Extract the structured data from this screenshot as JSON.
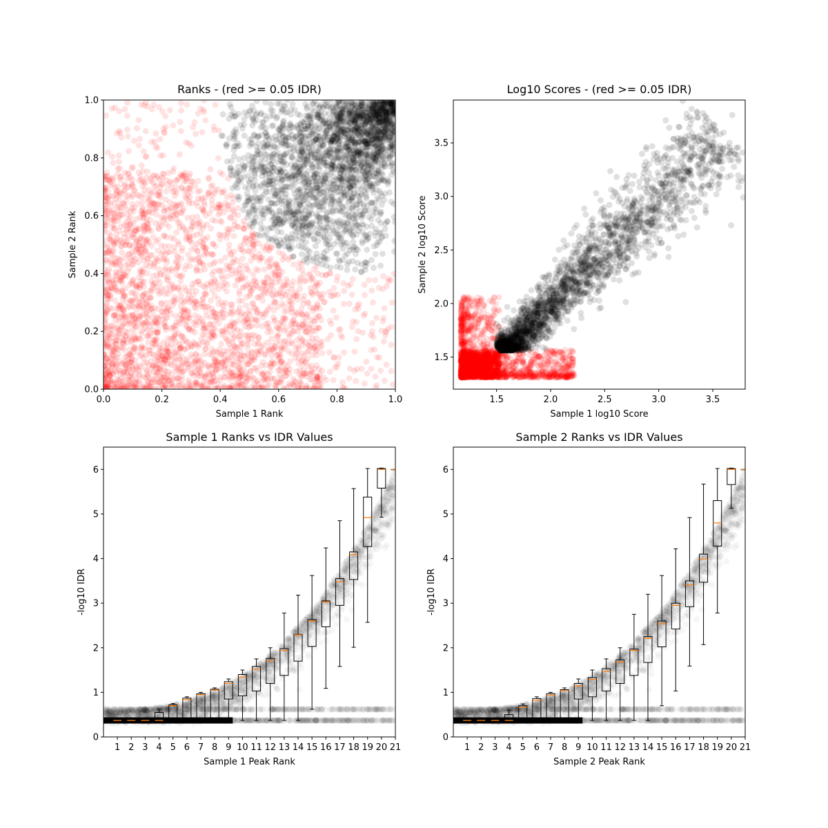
{
  "chart_data": [
    {
      "type": "scatter",
      "title": "Ranks - (red >= 0.05 IDR)",
      "xlabel": "Sample 1 Rank",
      "ylabel": "Sample 2 Rank",
      "xlim": [
        0,
        1
      ],
      "ylim": [
        0,
        1
      ],
      "xticks": [
        "0.0",
        "0.2",
        "0.4",
        "0.6",
        "0.8",
        "1.0"
      ],
      "yticks": [
        "0.0",
        "0.2",
        "0.4",
        "0.6",
        "0.8",
        "1.0"
      ],
      "series": [
        {
          "color": "#ff0000",
          "region": "rank pairs with both ranks low or below the hyperbolic boundary (x-0.33)(y-0.33)<0.04"
        },
        {
          "color": "#000000",
          "region": "rank pairs with x>0.4, y>0.4 above the hyperbolic boundary, concentrated near the diagonal to (1,1)"
        }
      ],
      "grid": false
    },
    {
      "type": "scatter",
      "title": "Log10 Scores - (red >= 0.05 IDR)",
      "xlabel": "Sample 1 log10 Score",
      "ylabel": "Sample 2 log10 Score",
      "xlim": [
        1.1,
        3.8
      ],
      "ylim": [
        1.2,
        3.9
      ],
      "xticks": [
        "1.5",
        "2.0",
        "2.5",
        "3.0",
        "3.5"
      ],
      "yticks": [
        "1.5",
        "2.0",
        "2.5",
        "3.0",
        "3.5"
      ],
      "series": [
        {
          "color": "#ff0000",
          "region": "scores between 1.17 and ~2.2 with one of the two below ~1.55"
        },
        {
          "color": "#000000",
          "region": "scores from ~1.55 up to ~3.7 along the diagonal"
        }
      ],
      "grid": false
    },
    {
      "type": "box",
      "title": "Sample 1 Ranks vs IDR Values",
      "xlabel": "Sample 1 Peak Rank",
      "ylabel": "-log10 IDR",
      "xlim": [
        0,
        21
      ],
      "ylim": [
        0,
        6.5
      ],
      "xticks": [
        "1",
        "2",
        "3",
        "4",
        "5",
        "6",
        "7",
        "8",
        "9",
        "10",
        "11",
        "12",
        "13",
        "14",
        "15",
        "16",
        "17",
        "18",
        "19",
        "20",
        "21"
      ],
      "yticks": [
        "0",
        "1",
        "2",
        "3",
        "4",
        "5",
        "6"
      ],
      "boxes": [
        {
          "x": 1,
          "q1": 0.37,
          "median": 0.37,
          "q3": 0.37,
          "whislo": 0.37,
          "whishi": 0.37
        },
        {
          "x": 2,
          "q1": 0.37,
          "median": 0.37,
          "q3": 0.37,
          "whislo": 0.37,
          "whishi": 0.37
        },
        {
          "x": 3,
          "q1": 0.37,
          "median": 0.37,
          "q3": 0.37,
          "whislo": 0.37,
          "whishi": 0.37
        },
        {
          "x": 4,
          "q1": 0.37,
          "median": 0.37,
          "q3": 0.55,
          "whislo": 0.37,
          "whishi": 0.62
        },
        {
          "x": 5,
          "q1": 0.37,
          "median": 0.7,
          "q3": 0.72,
          "whislo": 0.37,
          "whishi": 0.75
        },
        {
          "x": 6,
          "q1": 0.37,
          "median": 0.84,
          "q3": 0.87,
          "whislo": 0.37,
          "whishi": 0.9
        },
        {
          "x": 7,
          "q1": 0.37,
          "median": 0.95,
          "q3": 0.97,
          "whislo": 0.37,
          "whishi": 1.0
        },
        {
          "x": 8,
          "q1": 0.37,
          "median": 1.05,
          "q3": 1.07,
          "whislo": 0.37,
          "whishi": 1.1
        },
        {
          "x": 9,
          "q1": 0.85,
          "median": 1.2,
          "q3": 1.24,
          "whislo": 0.37,
          "whishi": 1.3
        },
        {
          "x": 10,
          "q1": 0.92,
          "median": 1.34,
          "q3": 1.4,
          "whislo": 0.37,
          "whishi": 1.5
        },
        {
          "x": 11,
          "q1": 1.03,
          "median": 1.52,
          "q3": 1.58,
          "whislo": 0.37,
          "whishi": 1.75
        },
        {
          "x": 12,
          "q1": 1.2,
          "median": 1.71,
          "q3": 1.76,
          "whislo": 0.37,
          "whishi": 2.0
        },
        {
          "x": 13,
          "q1": 1.38,
          "median": 1.94,
          "q3": 1.98,
          "whislo": 0.37,
          "whishi": 2.78
        },
        {
          "x": 14,
          "q1": 1.7,
          "median": 2.29,
          "q3": 2.3,
          "whislo": 0.37,
          "whishi": 3.18
        },
        {
          "x": 15,
          "q1": 2.03,
          "median": 2.6,
          "q3": 2.63,
          "whislo": 0.62,
          "whishi": 3.62
        },
        {
          "x": 16,
          "q1": 2.47,
          "median": 3.03,
          "q3": 3.05,
          "whislo": 1.09,
          "whishi": 4.24
        },
        {
          "x": 17,
          "q1": 2.95,
          "median": 3.48,
          "q3": 3.55,
          "whislo": 1.58,
          "whishi": 4.85
        },
        {
          "x": 18,
          "q1": 3.53,
          "median": 4.09,
          "q3": 4.15,
          "whislo": 2.01,
          "whishi": 5.57
        },
        {
          "x": 19,
          "q1": 4.27,
          "median": 4.92,
          "q3": 5.38,
          "whislo": 2.57,
          "whishi": 6.02
        },
        {
          "x": 20,
          "q1": 5.58,
          "median": 6.0,
          "q3": 6.02,
          "whislo": 4.93,
          "whishi": 6.03
        },
        {
          "x": 21,
          "q1": 6.0,
          "median": 6.0,
          "q3": 6.0,
          "whislo": 6.0,
          "whishi": 6.0
        }
      ],
      "grid": false
    },
    {
      "type": "box",
      "title": "Sample 2 Ranks vs IDR Values",
      "xlabel": "Sample 2 Peak Rank",
      "ylabel": "-log10 IDR",
      "xlim": [
        0,
        21
      ],
      "ylim": [
        0,
        6.5
      ],
      "xticks": [
        "1",
        "2",
        "3",
        "4",
        "5",
        "6",
        "7",
        "8",
        "9",
        "10",
        "11",
        "12",
        "13",
        "14",
        "15",
        "16",
        "17",
        "18",
        "19",
        "20",
        "21"
      ],
      "yticks": [
        "0",
        "1",
        "2",
        "3",
        "4",
        "5",
        "6"
      ],
      "boxes": [
        {
          "x": 1,
          "q1": 0.37,
          "median": 0.37,
          "q3": 0.37,
          "whislo": 0.37,
          "whishi": 0.37
        },
        {
          "x": 2,
          "q1": 0.37,
          "median": 0.37,
          "q3": 0.37,
          "whislo": 0.37,
          "whishi": 0.37
        },
        {
          "x": 3,
          "q1": 0.37,
          "median": 0.37,
          "q3": 0.37,
          "whislo": 0.37,
          "whishi": 0.37
        },
        {
          "x": 4,
          "q1": 0.37,
          "median": 0.37,
          "q3": 0.5,
          "whislo": 0.37,
          "whishi": 0.6
        },
        {
          "x": 5,
          "q1": 0.37,
          "median": 0.66,
          "q3": 0.7,
          "whislo": 0.37,
          "whishi": 0.74
        },
        {
          "x": 6,
          "q1": 0.37,
          "median": 0.82,
          "q3": 0.86,
          "whislo": 0.37,
          "whishi": 0.9
        },
        {
          "x": 7,
          "q1": 0.37,
          "median": 0.94,
          "q3": 0.97,
          "whislo": 0.37,
          "whishi": 1.0
        },
        {
          "x": 8,
          "q1": 0.37,
          "median": 1.04,
          "q3": 1.06,
          "whislo": 0.37,
          "whishi": 1.1
        },
        {
          "x": 9,
          "q1": 0.85,
          "median": 1.14,
          "q3": 1.2,
          "whislo": 0.37,
          "whishi": 1.3
        },
        {
          "x": 10,
          "q1": 0.9,
          "median": 1.29,
          "q3": 1.33,
          "whislo": 0.37,
          "whishi": 1.5
        },
        {
          "x": 11,
          "q1": 1.03,
          "median": 1.47,
          "q3": 1.53,
          "whislo": 0.37,
          "whishi": 1.75
        },
        {
          "x": 12,
          "q1": 1.2,
          "median": 1.68,
          "q3": 1.73,
          "whislo": 0.37,
          "whishi": 2.0
        },
        {
          "x": 13,
          "q1": 1.38,
          "median": 1.94,
          "q3": 1.97,
          "whislo": 0.37,
          "whishi": 2.75
        },
        {
          "x": 14,
          "q1": 1.67,
          "median": 2.21,
          "q3": 2.25,
          "whislo": 0.37,
          "whishi": 3.2
        },
        {
          "x": 15,
          "q1": 2.02,
          "median": 2.54,
          "q3": 2.6,
          "whislo": 0.7,
          "whishi": 3.62
        },
        {
          "x": 16,
          "q1": 2.42,
          "median": 2.95,
          "q3": 3.0,
          "whislo": 1.03,
          "whishi": 4.22
        },
        {
          "x": 17,
          "q1": 2.92,
          "median": 3.41,
          "q3": 3.5,
          "whislo": 1.59,
          "whishi": 4.92
        },
        {
          "x": 18,
          "q1": 3.47,
          "median": 3.99,
          "q3": 4.1,
          "whislo": 2.07,
          "whishi": 5.67
        },
        {
          "x": 19,
          "q1": 4.28,
          "median": 4.8,
          "q3": 5.3,
          "whislo": 2.78,
          "whishi": 6.02
        },
        {
          "x": 20,
          "q1": 5.66,
          "median": 6.0,
          "q3": 6.02,
          "whislo": 5.13,
          "whishi": 6.03
        },
        {
          "x": 21,
          "q1": 6.0,
          "median": 6.0,
          "q3": 6.0,
          "whislo": 6.0,
          "whishi": 6.0
        }
      ],
      "grid": false
    }
  ]
}
